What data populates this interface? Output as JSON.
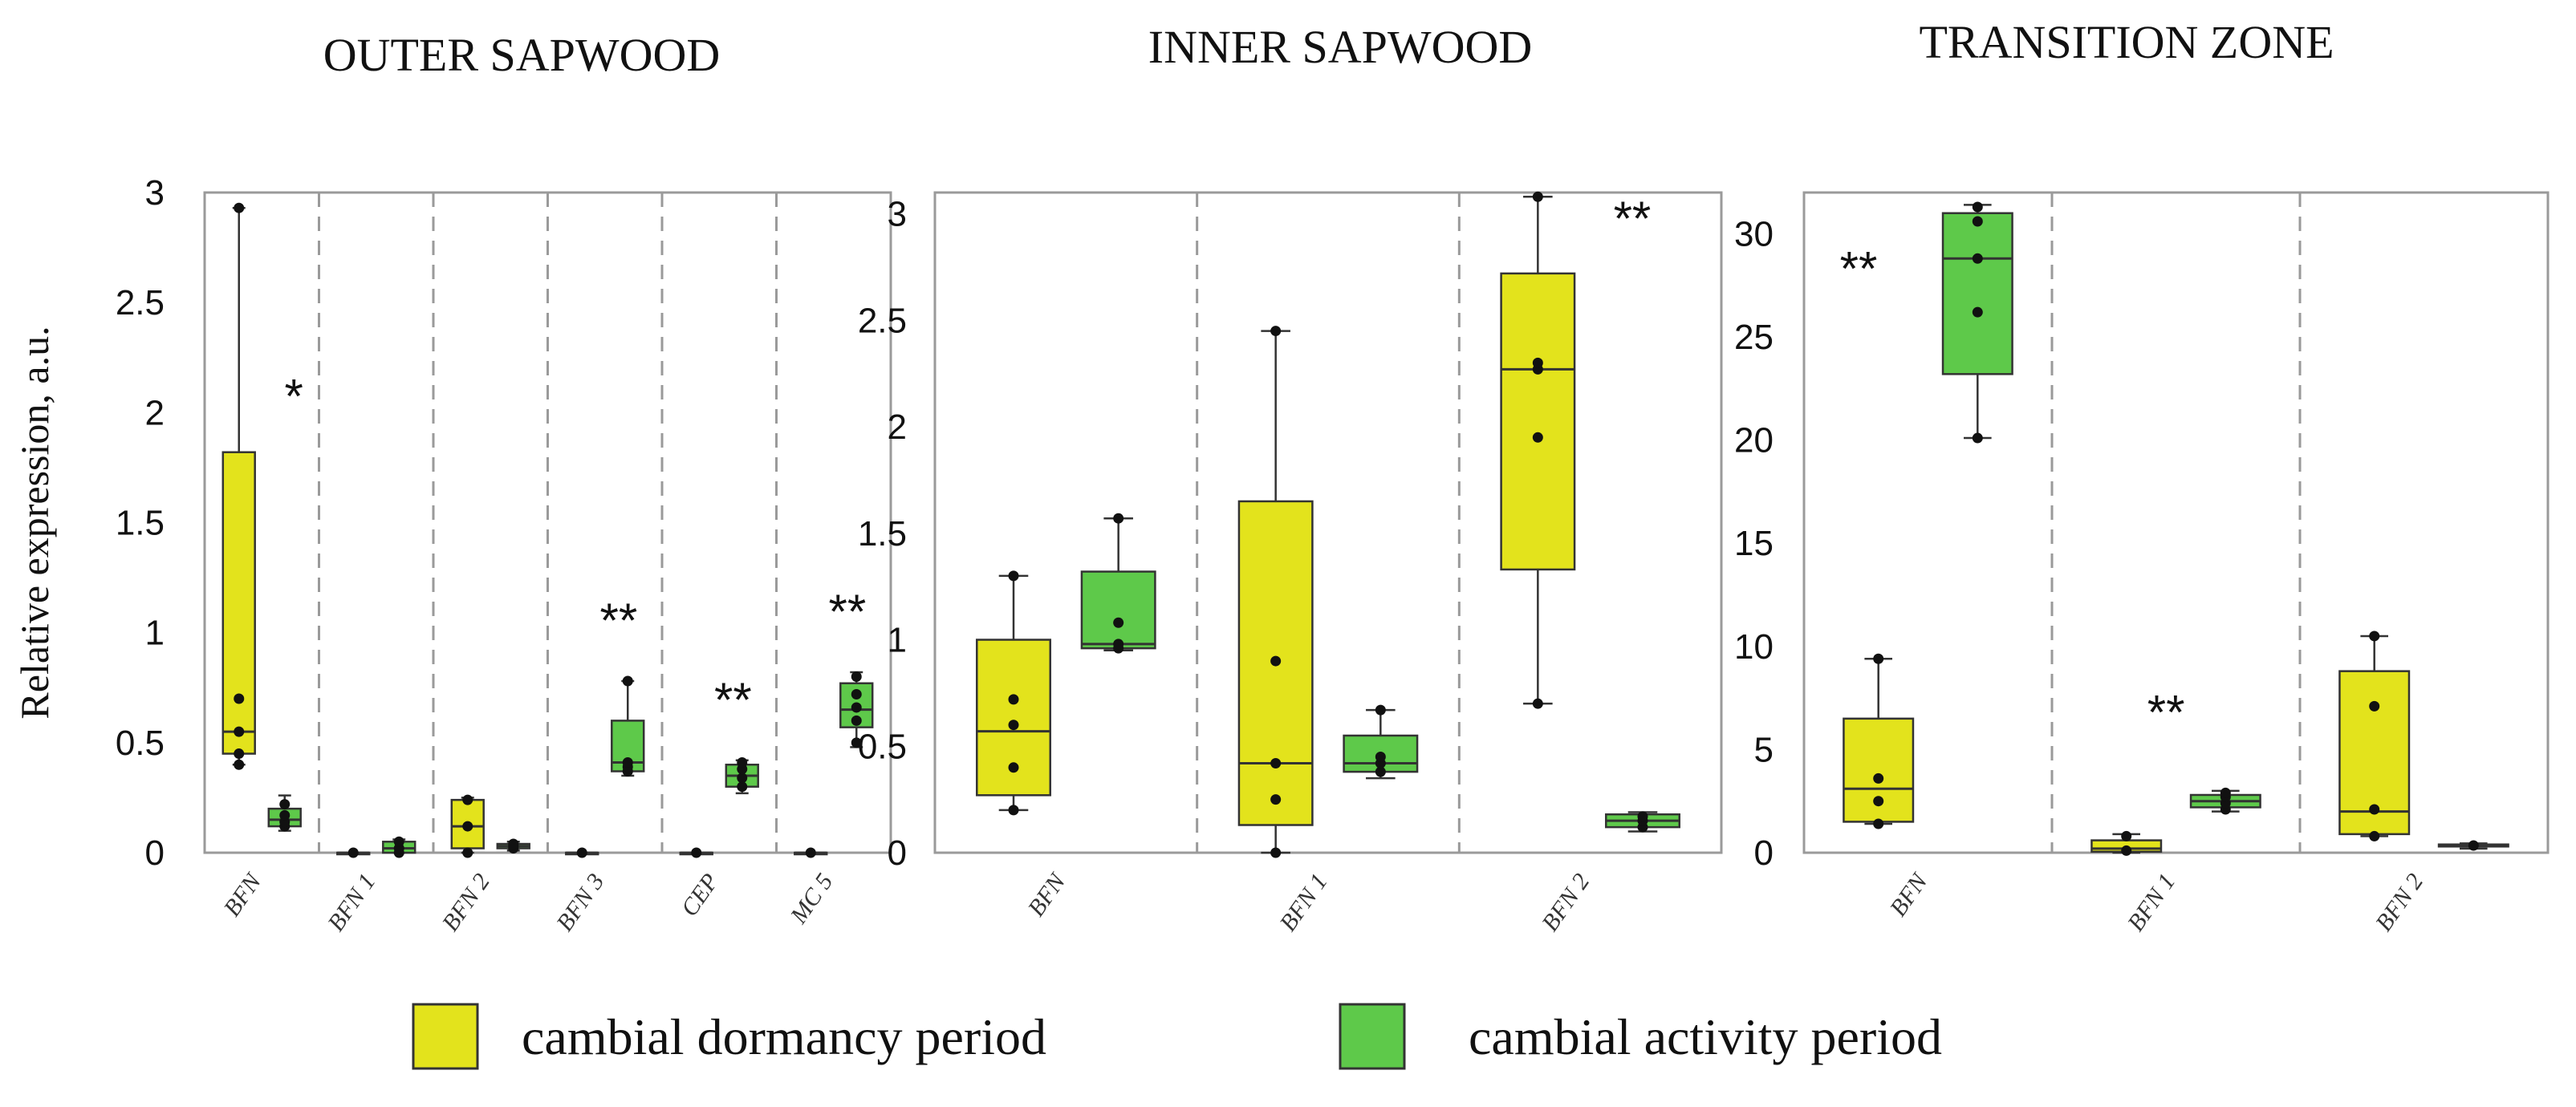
{
  "chart_data": [
    {
      "type": "boxplot",
      "title": "OUTER SAPWOOD",
      "ylabel": "Relative expression, a.u.",
      "ylim": [
        0,
        3
      ],
      "yticks": [
        0,
        0.5,
        1,
        1.5,
        2,
        2.5,
        3
      ],
      "ytick_labels": [
        "0",
        "0.5",
        "1",
        "1.5",
        "2",
        "2.5",
        "3"
      ],
      "categories": [
        "BFN",
        "BFN 1",
        "BFN 2",
        "BFN 3",
        "CEP",
        "MC 5"
      ],
      "significance": [
        "*",
        "",
        "",
        "**",
        "**",
        "**"
      ],
      "series": [
        {
          "name": "cambial dormancy period",
          "boxes": [
            {
              "min": 0.4,
              "q1": 0.45,
              "median": 0.55,
              "q3": 1.82,
              "max": 2.93,
              "points": [
                0.4,
                0.45,
                0.55,
                0.7,
                2.93
              ]
            },
            {
              "min": 0,
              "q1": 0,
              "median": 0,
              "q3": 0,
              "max": 0,
              "points": [
                0
              ]
            },
            {
              "min": 0,
              "q1": 0.02,
              "median": 0.12,
              "q3": 0.24,
              "max": 0.25,
              "points": [
                0,
                0.12,
                0.24
              ]
            },
            {
              "min": 0,
              "q1": 0,
              "median": 0,
              "q3": 0,
              "max": 0,
              "points": [
                0
              ]
            },
            {
              "min": 0,
              "q1": 0,
              "median": 0,
              "q3": 0,
              "max": 0,
              "points": [
                0
              ]
            },
            {
              "min": 0,
              "q1": 0,
              "median": 0,
              "q3": 0,
              "max": 0,
              "points": [
                0
              ]
            }
          ]
        },
        {
          "name": "cambial activity period",
          "boxes": [
            {
              "min": 0.1,
              "q1": 0.12,
              "median": 0.15,
              "q3": 0.2,
              "max": 0.26,
              "points": [
                0.12,
                0.14,
                0.17,
                0.22
              ]
            },
            {
              "min": 0,
              "q1": 0,
              "median": 0.02,
              "q3": 0.05,
              "max": 0.06,
              "points": [
                0,
                0.02,
                0.05
              ]
            },
            {
              "min": 0.01,
              "q1": 0.02,
              "median": 0.03,
              "q3": 0.04,
              "max": 0.05,
              "points": [
                0.02,
                0.03,
                0.04
              ]
            },
            {
              "min": 0.35,
              "q1": 0.37,
              "median": 0.41,
              "q3": 0.6,
              "max": 0.78,
              "points": [
                0.37,
                0.39,
                0.41,
                0.78
              ]
            },
            {
              "min": 0.27,
              "q1": 0.3,
              "median": 0.35,
              "q3": 0.4,
              "max": 0.42,
              "points": [
                0.3,
                0.34,
                0.38,
                0.41
              ]
            },
            {
              "min": 0.48,
              "q1": 0.57,
              "median": 0.65,
              "q3": 0.77,
              "max": 0.82,
              "points": [
                0.5,
                0.6,
                0.66,
                0.72,
                0.8
              ]
            }
          ]
        }
      ]
    },
    {
      "type": "boxplot",
      "title": "INNER SAPWOOD",
      "ylabel": "",
      "ylim": [
        0,
        3.1
      ],
      "yticks": [
        0,
        0.5,
        1,
        1.5,
        2,
        2.5,
        3
      ],
      "ytick_labels": [
        "0",
        "0.5",
        "1",
        "1.5",
        "2",
        "2.5",
        "3"
      ],
      "categories": [
        "BFN",
        "BFN 1",
        "BFN 2"
      ],
      "significance": [
        "",
        "",
        "**"
      ],
      "series": [
        {
          "name": "cambial dormancy period",
          "boxes": [
            {
              "min": 0.2,
              "q1": 0.27,
              "median": 0.57,
              "q3": 1.0,
              "max": 1.3,
              "points": [
                0.2,
                0.4,
                0.6,
                0.72,
                1.3
              ]
            },
            {
              "min": 0,
              "q1": 0.13,
              "median": 0.42,
              "q3": 1.65,
              "max": 2.45,
              "points": [
                0,
                0.25,
                0.42,
                0.9,
                2.45
              ]
            },
            {
              "min": 0.7,
              "q1": 1.33,
              "median": 2.27,
              "q3": 2.72,
              "max": 3.08,
              "points": [
                0.7,
                1.95,
                2.27,
                2.3,
                3.08
              ]
            }
          ]
        },
        {
          "name": "cambial activity period",
          "boxes": [
            {
              "min": 0.95,
              "q1": 0.96,
              "median": 0.98,
              "q3": 1.32,
              "max": 1.57,
              "points": [
                0.96,
                0.98,
                1.08,
                1.57
              ]
            },
            {
              "min": 0.35,
              "q1": 0.38,
              "median": 0.42,
              "q3": 0.55,
              "max": 0.67,
              "points": [
                0.38,
                0.42,
                0.45,
                0.67
              ]
            },
            {
              "min": 0.1,
              "q1": 0.12,
              "median": 0.15,
              "q3": 0.18,
              "max": 0.19,
              "points": [
                0.12,
                0.15,
                0.17
              ]
            }
          ]
        }
      ]
    },
    {
      "type": "boxplot",
      "title": "TRANSITION ZONE",
      "ylabel": "",
      "ylim": [
        0,
        32
      ],
      "yticks": [
        0,
        5,
        10,
        15,
        20,
        25,
        30
      ],
      "ytick_labels": [
        "0",
        "5",
        "10",
        "15",
        "20",
        "25",
        "30"
      ],
      "categories": [
        "BFN",
        "BFN 1",
        "BFN 2"
      ],
      "significance": [
        "**",
        "**",
        ""
      ],
      "series": [
        {
          "name": "cambial dormancy period",
          "boxes": [
            {
              "min": 1.4,
              "q1": 1.5,
              "median": 3.1,
              "q3": 6.5,
              "max": 9.4,
              "points": [
                1.4,
                2.5,
                3.6,
                9.4
              ]
            },
            {
              "min": 0,
              "q1": 0.05,
              "median": 0.2,
              "q3": 0.6,
              "max": 0.9,
              "points": [
                0.1,
                0.8
              ]
            },
            {
              "min": 0.8,
              "q1": 0.9,
              "median": 2.0,
              "q3": 8.8,
              "max": 10.5,
              "points": [
                0.8,
                2.1,
                7.1,
                10.5
              ]
            }
          ]
        },
        {
          "name": "cambial activity period",
          "boxes": [
            {
              "min": 20.1,
              "q1": 23.2,
              "median": 28.8,
              "q3": 31.0,
              "max": 31.4,
              "points": [
                20.1,
                26.2,
                28.8,
                30.6,
                31.3
              ]
            },
            {
              "min": 2.0,
              "q1": 2.2,
              "median": 2.5,
              "q3": 2.8,
              "max": 3.0,
              "points": [
                2.1,
                2.4,
                2.7,
                2.9
              ]
            },
            {
              "min": 0.2,
              "q1": 0.3,
              "median": 0.35,
              "q3": 0.4,
              "max": 0.45,
              "points": [
                0.35
              ]
            }
          ]
        }
      ]
    }
  ],
  "legend": {
    "items": [
      {
        "label": "cambial dormancy period",
        "color": "#e3e31c"
      },
      {
        "label": "cambial activity period",
        "color": "#5ec94a"
      }
    ]
  }
}
